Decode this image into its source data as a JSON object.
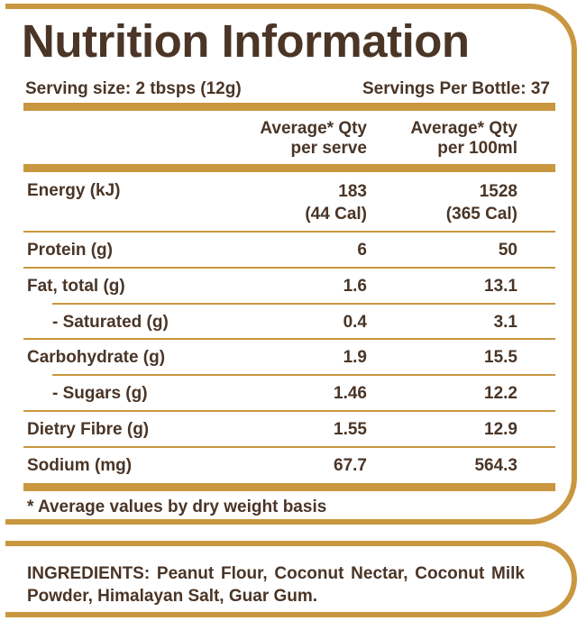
{
  "title": "Nutrition Information",
  "serving_size": "Serving size: 2 tbsps (12g)",
  "servings_per_bottle": "Servings Per Bottle: 37",
  "columns": {
    "per_serve": [
      "Average* Qty",
      "per serve"
    ],
    "per_100": [
      "Average* Qty",
      "per 100ml"
    ]
  },
  "rows": [
    {
      "label": "Energy (kJ)",
      "per_serve": "183",
      "per_serve_2": "(44 Cal)",
      "per_100": "1528",
      "per_100_2": "(365 Cal)"
    },
    {
      "label": "Protein (g)",
      "per_serve": "6",
      "per_100": "50"
    },
    {
      "label": "Fat, total (g)",
      "per_serve": "1.6",
      "per_100": "13.1"
    },
    {
      "label": "- Saturated (g)",
      "per_serve": "0.4",
      "per_100": "3.1"
    },
    {
      "label": "Carbohydrate (g)",
      "per_serve": "1.9",
      "per_100": "15.5"
    },
    {
      "label": "- Sugars (g)",
      "per_serve": "1.46",
      "per_100": "12.2"
    },
    {
      "label": "Dietry Fibre (g)",
      "per_serve": "1.55",
      "per_100": "12.9"
    },
    {
      "label": "Sodium (mg)",
      "per_serve": "67.7",
      "per_100": "564.3"
    }
  ],
  "footnote": "* Average values by dry weight basis",
  "ingredients": "INGREDIENTS: Peanut Flour, Coconut Nectar, Coconut Milk Powder, Himalayan Salt, Guar Gum.",
  "colors": {
    "border": "#c9973f",
    "text": "#4a3526"
  }
}
